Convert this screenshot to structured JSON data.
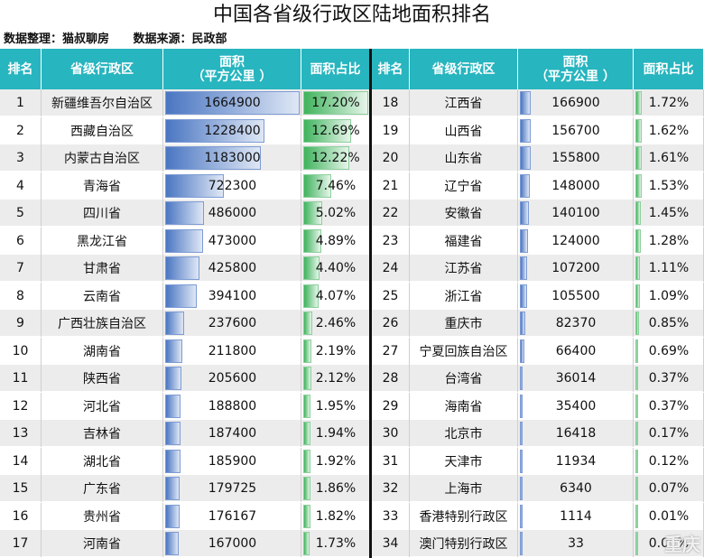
{
  "title": "中国各省级行政区陆地面积排名",
  "meta": {
    "organizer": "数据整理：猫叔聊房",
    "source": "数据来源：民政部"
  },
  "headers": {
    "rank": "排名",
    "region": "省级行政区",
    "area": "面积\n（平方公里 ）",
    "ratio": "面积占比"
  },
  "colors": {
    "header": "#27b5bf",
    "area_bar": "#4a76c2",
    "ratio_bar": "#3fb35c"
  },
  "max_area": 1664900,
  "max_ratio": 17.2,
  "left_rows": [
    {
      "rank": "1",
      "name": "新疆维吾尔自治区",
      "area": "1664900",
      "ratio": "17.20%"
    },
    {
      "rank": "2",
      "name": "西藏自治区",
      "area": "1228400",
      "ratio": "12.69%"
    },
    {
      "rank": "3",
      "name": "内蒙古自治区",
      "area": "1183000",
      "ratio": "12.22%"
    },
    {
      "rank": "4",
      "name": "青海省",
      "area": "722300",
      "ratio": "7.46%"
    },
    {
      "rank": "5",
      "name": "四川省",
      "area": "486000",
      "ratio": "5.02%"
    },
    {
      "rank": "6",
      "name": "黑龙江省",
      "area": "473000",
      "ratio": "4.89%"
    },
    {
      "rank": "7",
      "name": "甘肃省",
      "area": "425800",
      "ratio": "4.40%"
    },
    {
      "rank": "8",
      "name": "云南省",
      "area": "394100",
      "ratio": "4.07%"
    },
    {
      "rank": "9",
      "name": "广西壮族自治区",
      "area": "237600",
      "ratio": "2.46%"
    },
    {
      "rank": "10",
      "name": "湖南省",
      "area": "211800",
      "ratio": "2.19%"
    },
    {
      "rank": "11",
      "name": "陕西省",
      "area": "205600",
      "ratio": "2.12%"
    },
    {
      "rank": "12",
      "name": "河北省",
      "area": "188800",
      "ratio": "1.95%"
    },
    {
      "rank": "13",
      "name": "吉林省",
      "area": "187400",
      "ratio": "1.94%"
    },
    {
      "rank": "14",
      "name": "湖北省",
      "area": "185900",
      "ratio": "1.92%"
    },
    {
      "rank": "15",
      "name": "广东省",
      "area": "179725",
      "ratio": "1.86%"
    },
    {
      "rank": "16",
      "name": "贵州省",
      "area": "176167",
      "ratio": "1.82%"
    },
    {
      "rank": "17",
      "name": "河南省",
      "area": "167000",
      "ratio": "1.73%"
    }
  ],
  "right_rows": [
    {
      "rank": "18",
      "name": "江西省",
      "area": "166900",
      "ratio": "1.72%"
    },
    {
      "rank": "19",
      "name": "山西省",
      "area": "156700",
      "ratio": "1.62%"
    },
    {
      "rank": "20",
      "name": "山东省",
      "area": "155800",
      "ratio": "1.61%"
    },
    {
      "rank": "21",
      "name": "辽宁省",
      "area": "148000",
      "ratio": "1.53%"
    },
    {
      "rank": "22",
      "name": "安徽省",
      "area": "140100",
      "ratio": "1.45%"
    },
    {
      "rank": "23",
      "name": "福建省",
      "area": "124000",
      "ratio": "1.28%"
    },
    {
      "rank": "24",
      "name": "江苏省",
      "area": "107200",
      "ratio": "1.11%"
    },
    {
      "rank": "25",
      "name": "浙江省",
      "area": "105500",
      "ratio": "1.09%"
    },
    {
      "rank": "26",
      "name": "重庆市",
      "area": "82370",
      "ratio": "0.85%"
    },
    {
      "rank": "27",
      "name": "宁夏回族自治区",
      "area": "66400",
      "ratio": "0.69%"
    },
    {
      "rank": "28",
      "name": "台湾省",
      "area": "36014",
      "ratio": "0.37%"
    },
    {
      "rank": "29",
      "name": "海南省",
      "area": "35400",
      "ratio": "0.37%"
    },
    {
      "rank": "30",
      "name": "北京市",
      "area": "16418",
      "ratio": "0.17%"
    },
    {
      "rank": "31",
      "name": "天津市",
      "area": "11934",
      "ratio": "0.12%"
    },
    {
      "rank": "32",
      "name": "上海市",
      "area": "6340",
      "ratio": "0.07%"
    },
    {
      "rank": "33",
      "name": "香港特别行政区",
      "area": "1114",
      "ratio": "0.01%"
    },
    {
      "rank": "34",
      "name": "澳门特别行政区",
      "area": "33",
      "ratio": "0.00%"
    }
  ],
  "watermark": "重庆"
}
